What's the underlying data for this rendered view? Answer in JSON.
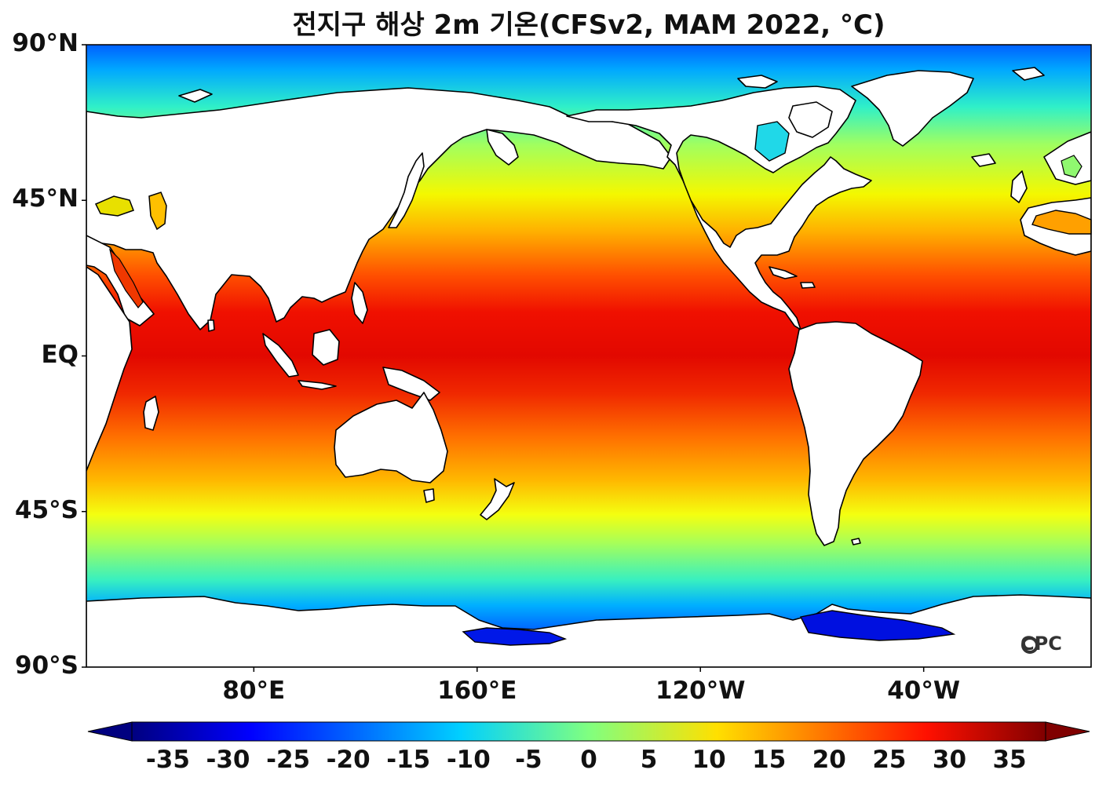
{
  "title": "전지구 해상 2m 기온(CFSv2, MAM 2022, °C)",
  "watermark": "CPC",
  "map": {
    "projection": "equirectangular",
    "central_longitude": 200,
    "lon_range": [
      20,
      380
    ],
    "lat_range": [
      -90,
      90
    ],
    "lat_ticks": [
      {
        "lat": 90,
        "label": "90°N"
      },
      {
        "lat": 45,
        "label": "45°N"
      },
      {
        "lat": 0,
        "label": "EQ"
      },
      {
        "lat": -45,
        "label": "45°S"
      },
      {
        "lat": -90,
        "label": "90°S"
      }
    ],
    "lon_ticks": [
      {
        "lon": 80,
        "label": "80°E"
      },
      {
        "lon": 160,
        "label": "160°E"
      },
      {
        "lon": 240,
        "label": "120°W"
      },
      {
        "lon": 320,
        "label": "40°W"
      }
    ],
    "variable": "sea surface 2m air temperature",
    "units": "°C"
  },
  "colorbar": {
    "min": -38,
    "max": 38,
    "ticks": [
      -35,
      -30,
      -25,
      -20,
      -15,
      -10,
      -5,
      0,
      5,
      10,
      15,
      20,
      25,
      30,
      35
    ],
    "tick_labels": [
      "-35",
      "-30",
      "-25",
      "-20",
      "-15",
      "-10",
      "-5",
      "0",
      "5",
      "10",
      "15",
      "20",
      "25",
      "30",
      "35"
    ],
    "extend": "both",
    "colormap": "jet"
  },
  "colors": {
    "land": "#ffffff",
    "coast": "#000000"
  }
}
